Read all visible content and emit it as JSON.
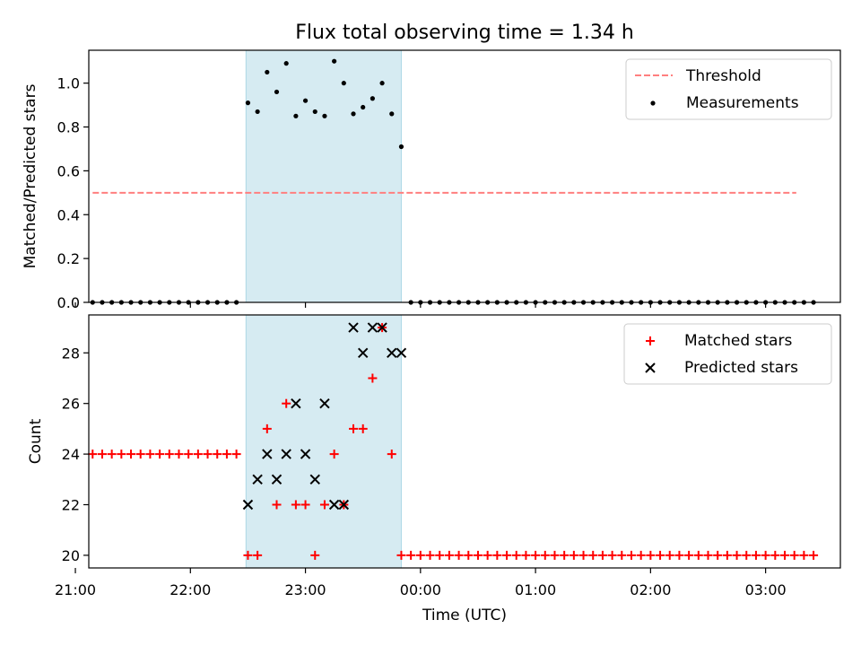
{
  "title": "Flux total observing time = 1.34 h",
  "colors": {
    "threshold": "#ff7f7f",
    "measurements": "#000000",
    "matched": "#ff0000",
    "predicted": "#000000",
    "span": "#add8e6"
  },
  "chart_data": [
    {
      "type": "scatter",
      "ylabel": "Matched/Predicted stars",
      "xlim": [
        "21:07",
        "03:39"
      ],
      "ylim": [
        0,
        1.15
      ],
      "yticks": [
        "0.0",
        "0.2",
        "0.4",
        "0.6",
        "0.8",
        "1.0"
      ],
      "grid": false,
      "legend_position": "top-right",
      "shaded_span": [
        "22:29",
        "23:50"
      ],
      "threshold": {
        "name": "Threshold",
        "value": 0.5,
        "x_start": "21:09",
        "x_end": "03:16"
      },
      "measurements": {
        "name": "Measurements",
        "points": [
          [
            "21:09",
            0
          ],
          [
            "21:14",
            0
          ],
          [
            "21:19",
            0
          ],
          [
            "21:24",
            0
          ],
          [
            "21:29",
            0
          ],
          [
            "21:34",
            0
          ],
          [
            "21:39",
            0
          ],
          [
            "21:44",
            0
          ],
          [
            "21:49",
            0
          ],
          [
            "21:54",
            0
          ],
          [
            "21:59",
            0
          ],
          [
            "22:04",
            0
          ],
          [
            "22:09",
            0
          ],
          [
            "22:14",
            0
          ],
          [
            "22:19",
            0
          ],
          [
            "22:24",
            0
          ],
          [
            "22:30",
            0.91
          ],
          [
            "22:35",
            0.87
          ],
          [
            "22:40",
            1.05
          ],
          [
            "22:45",
            0.96
          ],
          [
            "22:50",
            1.09
          ],
          [
            "22:55",
            0.85
          ],
          [
            "23:00",
            0.92
          ],
          [
            "23:05",
            0.87
          ],
          [
            "23:10",
            0.85
          ],
          [
            "23:15",
            1.1
          ],
          [
            "23:20",
            1.0
          ],
          [
            "23:25",
            0.86
          ],
          [
            "23:30",
            0.89
          ],
          [
            "23:35",
            0.93
          ],
          [
            "23:40",
            1.0
          ],
          [
            "23:45",
            0.86
          ],
          [
            "23:50",
            0.71
          ],
          [
            "23:55",
            0
          ],
          [
            "00:00",
            0
          ],
          [
            "00:05",
            0
          ],
          [
            "00:10",
            0
          ],
          [
            "00:15",
            0
          ],
          [
            "00:20",
            0
          ],
          [
            "00:25",
            0
          ],
          [
            "00:30",
            0
          ],
          [
            "00:35",
            0
          ],
          [
            "00:40",
            0
          ],
          [
            "00:45",
            0
          ],
          [
            "00:50",
            0
          ],
          [
            "00:55",
            0
          ],
          [
            "01:00",
            0
          ],
          [
            "01:05",
            0
          ],
          [
            "01:10",
            0
          ],
          [
            "01:15",
            0
          ],
          [
            "01:20",
            0
          ],
          [
            "01:25",
            0
          ],
          [
            "01:30",
            0
          ],
          [
            "01:35",
            0
          ],
          [
            "01:40",
            0
          ],
          [
            "01:45",
            0
          ],
          [
            "01:50",
            0
          ],
          [
            "01:55",
            0
          ],
          [
            "02:00",
            0
          ],
          [
            "02:05",
            0
          ],
          [
            "02:10",
            0
          ],
          [
            "02:15",
            0
          ],
          [
            "02:20",
            0
          ],
          [
            "02:25",
            0
          ],
          [
            "02:30",
            0
          ],
          [
            "02:35",
            0
          ],
          [
            "02:40",
            0
          ],
          [
            "02:45",
            0
          ],
          [
            "02:50",
            0
          ],
          [
            "02:55",
            0
          ],
          [
            "03:00",
            0
          ],
          [
            "03:05",
            0
          ],
          [
            "03:10",
            0
          ],
          [
            "03:15",
            0
          ],
          [
            "03:20",
            0
          ],
          [
            "03:25",
            0
          ]
        ]
      }
    },
    {
      "type": "scatter",
      "xlabel": "Time (UTC)",
      "ylabel": "Count",
      "xlim": [
        "21:07",
        "03:39"
      ],
      "ylim": [
        19.5,
        29.5
      ],
      "xticks": [
        "21:00",
        "22:00",
        "23:00",
        "00:00",
        "01:00",
        "02:00",
        "03:00"
      ],
      "yticks": [
        "20",
        "22",
        "24",
        "26",
        "28"
      ],
      "grid": false,
      "legend_position": "top-right",
      "shaded_span": [
        "22:29",
        "23:50"
      ],
      "series": [
        {
          "name": "Matched stars",
          "marker": "plus",
          "points": [
            [
              "21:09",
              24
            ],
            [
              "21:14",
              24
            ],
            [
              "21:19",
              24
            ],
            [
              "21:24",
              24
            ],
            [
              "21:29",
              24
            ],
            [
              "21:34",
              24
            ],
            [
              "21:39",
              24
            ],
            [
              "21:44",
              24
            ],
            [
              "21:49",
              24
            ],
            [
              "21:54",
              24
            ],
            [
              "21:59",
              24
            ],
            [
              "22:04",
              24
            ],
            [
              "22:09",
              24
            ],
            [
              "22:14",
              24
            ],
            [
              "22:19",
              24
            ],
            [
              "22:24",
              24
            ],
            [
              "22:30",
              20
            ],
            [
              "22:35",
              20
            ],
            [
              "22:40",
              25
            ],
            [
              "22:45",
              22
            ],
            [
              "22:50",
              26
            ],
            [
              "22:55",
              22
            ],
            [
              "23:00",
              22
            ],
            [
              "23:05",
              20
            ],
            [
              "23:10",
              22
            ],
            [
              "23:15",
              24
            ],
            [
              "23:20",
              22
            ],
            [
              "23:25",
              25
            ],
            [
              "23:30",
              25
            ],
            [
              "23:35",
              27
            ],
            [
              "23:40",
              29
            ],
            [
              "23:45",
              24
            ],
            [
              "23:50",
              20
            ],
            [
              "23:55",
              20
            ],
            [
              "00:00",
              20
            ],
            [
              "00:05",
              20
            ],
            [
              "00:10",
              20
            ],
            [
              "00:15",
              20
            ],
            [
              "00:20",
              20
            ],
            [
              "00:25",
              20
            ],
            [
              "00:30",
              20
            ],
            [
              "00:35",
              20
            ],
            [
              "00:40",
              20
            ],
            [
              "00:45",
              20
            ],
            [
              "00:50",
              20
            ],
            [
              "00:55",
              20
            ],
            [
              "01:00",
              20
            ],
            [
              "01:05",
              20
            ],
            [
              "01:10",
              20
            ],
            [
              "01:15",
              20
            ],
            [
              "01:20",
              20
            ],
            [
              "01:25",
              20
            ],
            [
              "01:30",
              20
            ],
            [
              "01:35",
              20
            ],
            [
              "01:40",
              20
            ],
            [
              "01:45",
              20
            ],
            [
              "01:50",
              20
            ],
            [
              "01:55",
              20
            ],
            [
              "02:00",
              20
            ],
            [
              "02:05",
              20
            ],
            [
              "02:10",
              20
            ],
            [
              "02:15",
              20
            ],
            [
              "02:20",
              20
            ],
            [
              "02:25",
              20
            ],
            [
              "02:30",
              20
            ],
            [
              "02:35",
              20
            ],
            [
              "02:40",
              20
            ],
            [
              "02:45",
              20
            ],
            [
              "02:50",
              20
            ],
            [
              "02:55",
              20
            ],
            [
              "03:00",
              20
            ],
            [
              "03:05",
              20
            ],
            [
              "03:10",
              20
            ],
            [
              "03:15",
              20
            ],
            [
              "03:20",
              20
            ],
            [
              "03:25",
              20
            ]
          ]
        },
        {
          "name": "Predicted stars",
          "marker": "x",
          "points": [
            [
              "22:30",
              22
            ],
            [
              "22:35",
              23
            ],
            [
              "22:40",
              24
            ],
            [
              "22:45",
              23
            ],
            [
              "22:50",
              24
            ],
            [
              "22:55",
              26
            ],
            [
              "23:00",
              24
            ],
            [
              "23:05",
              23
            ],
            [
              "23:10",
              26
            ],
            [
              "23:15",
              22
            ],
            [
              "23:20",
              22
            ],
            [
              "23:25",
              29
            ],
            [
              "23:30",
              28
            ],
            [
              "23:35",
              29
            ],
            [
              "23:40",
              29
            ],
            [
              "23:45",
              28
            ],
            [
              "23:50",
              28
            ]
          ]
        }
      ]
    }
  ]
}
